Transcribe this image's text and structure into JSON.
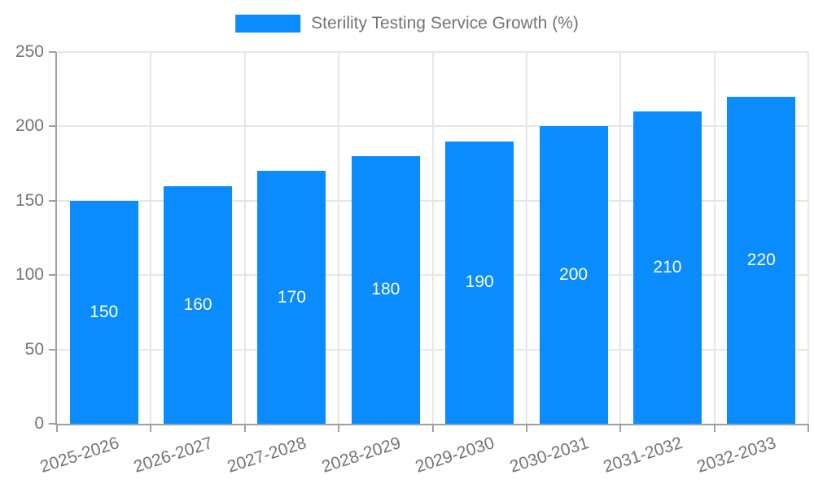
{
  "chart_data": {
    "type": "bar",
    "title": "",
    "legend": "Sterility Testing Service Growth (%)",
    "legend_position": "top-center",
    "categories": [
      "2025-2026",
      "2026-2027",
      "2027-2028",
      "2028-2029",
      "2029-2030",
      "2030-2031",
      "2031-2032",
      "2032-2033"
    ],
    "values": [
      150,
      160,
      170,
      180,
      190,
      200,
      210,
      220
    ],
    "xlabel": "",
    "ylabel": "",
    "ylim": [
      0,
      250
    ],
    "y_ticks": [
      0,
      50,
      100,
      150,
      200,
      250
    ],
    "grid": true,
    "colors": {
      "bar": "#0a8cff",
      "bar_value_label": "#ffffff",
      "axis": "#a0a0a0",
      "gridline": "#e6e6e6",
      "tick_text": "#757575"
    }
  }
}
